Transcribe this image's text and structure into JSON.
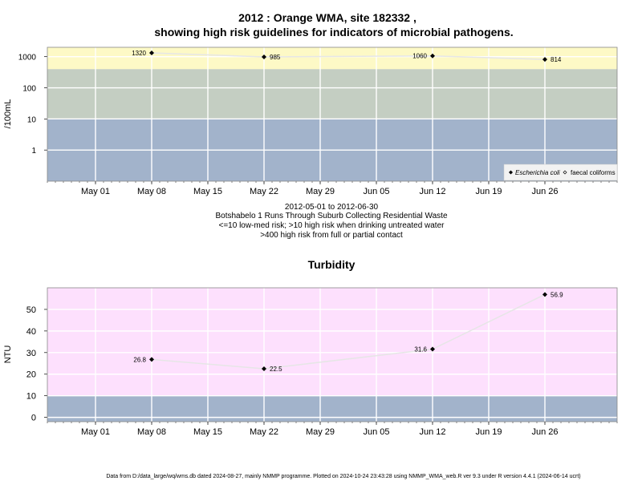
{
  "footer": "Data from D:/data_large/wq/wms.db dated 2024-08-27, mainly NMMP programme. Plotted on 2024-10-24 23:43:28 using NMMP_WMA_web.R ver 9.3 under R version 4.4.1 (2024-06-14 ucrt)",
  "colors": {
    "low_risk_band": "#a2b3cb",
    "mid_band": "#c4cec2",
    "high_risk_band": "#fdf9c6",
    "turbidity_high_band": "#fde0fd",
    "series_line": "#e6e6e6",
    "marker": "#000000"
  },
  "chart_data": [
    {
      "type": "line",
      "title_line1": "2012 : Orange WMA, site 182332 ,",
      "title_line2": "showing high risk guidelines for indicators of microbial pathogens.",
      "ylabel": "/100mL",
      "yscale": "log",
      "ylim": [
        0.1,
        2000
      ],
      "yticks": [
        1,
        10,
        100,
        1000
      ],
      "ytick_labels": [
        "1",
        "10",
        "100",
        "1000"
      ],
      "xlim": [
        "2012-04-25",
        "2012-07-05"
      ],
      "xticks": [
        "2012-05-01",
        "2012-05-08",
        "2012-05-15",
        "2012-05-22",
        "2012-05-29",
        "2012-06-05",
        "2012-06-12",
        "2012-06-19",
        "2012-06-26"
      ],
      "xtick_labels": [
        "May 01",
        "May 08",
        "May 15",
        "May 22",
        "May 29",
        "Jun 05",
        "Jun 12",
        "Jun 19",
        "Jun 26"
      ],
      "bands": [
        {
          "from": 0.1,
          "to": 10,
          "color": "#a2b3cb"
        },
        {
          "from": 10,
          "to": 400,
          "color": "#c4cec2"
        },
        {
          "from": 400,
          "to": 2000,
          "color": "#fdf9c6"
        }
      ],
      "series": [
        {
          "name": "Escherichia coli",
          "x": [
            "2012-05-08",
            "2012-05-22",
            "2012-06-12",
            "2012-06-26"
          ],
          "values": [
            1320,
            985,
            1060,
            814
          ],
          "labels": [
            "1320",
            "985",
            "1060",
            "814"
          ]
        }
      ],
      "legend": {
        "position": "bottom-right",
        "items": [
          "Escherichia coli",
          "faecal coliforms"
        ]
      },
      "grid": true,
      "caption_lines": [
        "2012-05-01 to 2012-06-30",
        "Botshabelo 1 Runs Through Suburb Collecting Residential Waste",
        "<=10 low-med risk; >10 high risk when drinking untreated water",
        ">400 high risk from full or partial contact"
      ]
    },
    {
      "type": "line",
      "title": "Turbidity",
      "ylabel": "NTU",
      "ylim": [
        -2,
        60
      ],
      "yticks": [
        0,
        10,
        20,
        30,
        40,
        50
      ],
      "ytick_labels": [
        "0",
        "10",
        "20",
        "30",
        "40",
        "50"
      ],
      "xlim": [
        "2012-04-25",
        "2012-07-05"
      ],
      "xticks": [
        "2012-05-01",
        "2012-05-08",
        "2012-05-15",
        "2012-05-22",
        "2012-05-29",
        "2012-06-05",
        "2012-06-12",
        "2012-06-19",
        "2012-06-26"
      ],
      "xtick_labels": [
        "May 01",
        "May 08",
        "May 15",
        "May 22",
        "May 29",
        "Jun 05",
        "Jun 12",
        "Jun 19",
        "Jun 26"
      ],
      "bands": [
        {
          "from": -2,
          "to": 10,
          "color": "#a2b3cb"
        },
        {
          "from": 10,
          "to": 60,
          "color": "#fde0fd"
        }
      ],
      "series": [
        {
          "name": "Turbidity",
          "x": [
            "2012-05-08",
            "2012-05-22",
            "2012-06-12",
            "2012-06-26"
          ],
          "values": [
            26.8,
            22.5,
            31.6,
            56.9
          ],
          "labels": [
            "26.8",
            "22.5",
            "31.6",
            "56.9"
          ]
        }
      ],
      "grid": true
    }
  ]
}
